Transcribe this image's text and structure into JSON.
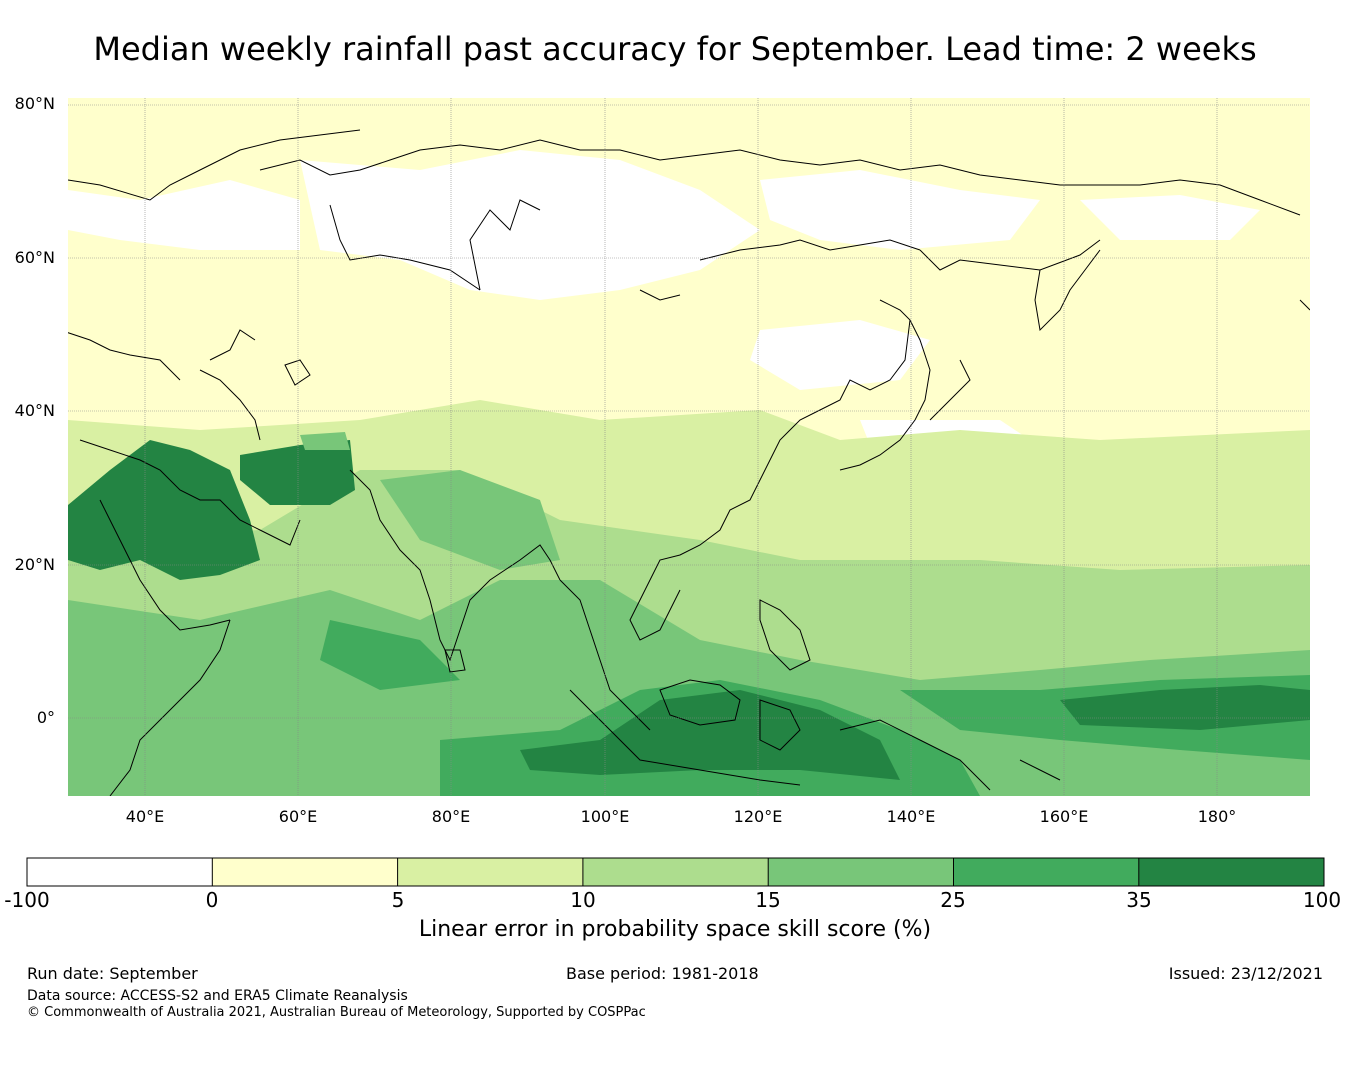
{
  "title": "Median weekly rainfall past accuracy for September. Lead time: 2 weeks",
  "map": {
    "lat_labels": [
      "80°N",
      "60°N",
      "40°N",
      "20°N",
      "0°"
    ],
    "lon_labels": [
      "40°E",
      "60°E",
      "80°E",
      "100°E",
      "120°E",
      "140°E",
      "160°E",
      "180°"
    ],
    "extent": {
      "lon": [
        30,
        192
      ],
      "lat": [
        -10,
        81
      ]
    }
  },
  "colorbar": {
    "ticks": [
      "-100",
      "0",
      "5",
      "10",
      "15",
      "25",
      "35",
      "100"
    ],
    "colors": [
      "#ffffff",
      "#ffffcc",
      "#d9f0a3",
      "#addd8e",
      "#78c679",
      "#41ab5d",
      "#238443"
    ],
    "label": "Linear error in probability space skill score (%)"
  },
  "footer": {
    "run_date": "Run date: September",
    "base_period": "Base period: 1981-2018",
    "issued": "Issued: 23/12/2021",
    "data_source": "Data source: ACCESS-S2 and ERA5 Climate Reanalysis",
    "copyright": "© Commonwealth of Australia 2021, Australian Bureau of Meteorology, Supported by COSPPac"
  }
}
